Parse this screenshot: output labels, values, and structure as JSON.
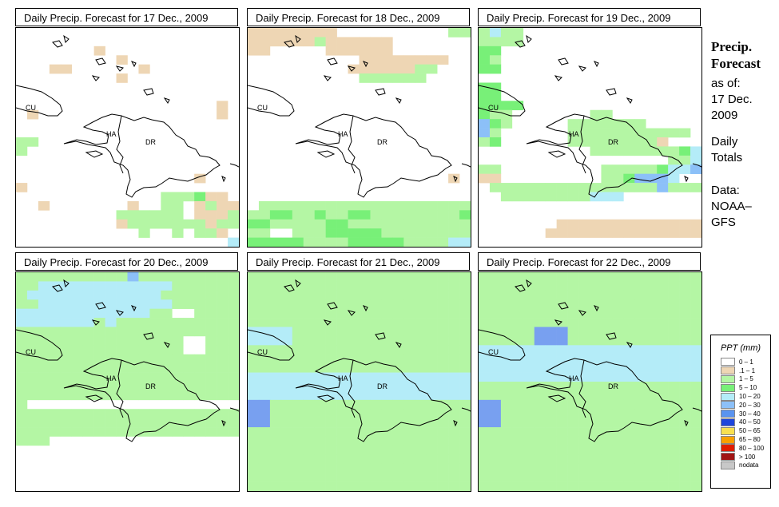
{
  "colors": {
    "c0": "#ffffff",
    "c1": "#eed6b4",
    "c2": "#b4f6a4",
    "c3": "#78f078",
    "c4": "#b4ecf8",
    "c5": "#8cc0f8",
    "c6": "#78a0f0"
  },
  "panels": [
    {
      "title": "Daily Precip. Forecast for  17 Dec., 2009",
      "grid": [
        "00000000000000000000",
        "00000000000000000000",
        "00000001000000000000",
        "00000000010000000000",
        "00011000000100000000",
        "00000000010000000000",
        "00000000000000000000",
        "00000000000000000000",
        "00000000000000000010",
        "01000000000000000010",
        "00000000000000000000",
        "00000000000000000000",
        "22000000000000000000",
        "20000000000000000000",
        "00000000000000000000",
        "00000000000000000000",
        "00000000000000001000",
        "10000000000000000000",
        "00000000000002223110",
        "00100000001002201211",
        "00000000022222201112",
        "00000000012222222122",
        "00000000000200202210",
        "00000000000000000004"
      ],
      "labels": [
        {
          "text": "CU",
          "x": 12,
          "y": 103
        },
        {
          "text": "HA",
          "x": 113,
          "y": 136
        },
        {
          "text": "DR",
          "x": 162,
          "y": 146
        }
      ]
    },
    {
      "title": "Daily Precip. Forecast for  18 Dec., 2009",
      "grid": [
        "11111111000000000022",
        "11111121111110000000",
        "11000001111110000000",
        "00000000001111111100",
        "00000000011111122000",
        "00000000002222220000",
        "00000000000000000000",
        "00000000000000000000",
        "00000000000000000000",
        "00000000000000000000",
        "00000000000000000000",
        "00000000000000000000",
        "00000000000000000000",
        "00000000000000000000",
        "00000000000000000000",
        "00000000000000000000",
        "00000000000000000010",
        "00000000000000000000",
        "00000000000000000000",
        "02222222222222222222",
        "22332232233222222223",
        "33222223322222222222",
        "22002223333322222222",
        "33333222233333222244"
      ],
      "labels": [
        {
          "text": "CU",
          "x": 12,
          "y": 103
        },
        {
          "text": "HA",
          "x": 113,
          "y": 136
        },
        {
          "text": "DR",
          "x": 162,
          "y": 146
        }
      ]
    },
    {
      "title": "Daily Precip. Forecast for  19 Dec., 2009",
      "grid": [
        "24220000000000000000",
        "22220000000000000000",
        "33000000000000000000",
        "32000000000000000000",
        "33000000000000000000",
        "00000000000000000000",
        "33000000000000000000",
        "33000000000000000000",
        "33330000000000000000",
        "32200000002200000000",
        "53200000222222200000",
        "52000000222222222220",
        "23000000222222221000",
        "00000000002222222234",
        "00000000000000000224",
        "22000000000222223445",
        "11000000000223555400",
        "02222222222222225222",
        "00222222224440000000",
        "00000000000000000000",
        "00000000000000000000",
        "00000001111111111111",
        "00000011111111111111",
        "00000000000000000000"
      ],
      "labels": [
        {
          "text": "CU",
          "x": 12,
          "y": 103
        },
        {
          "text": "HA",
          "x": 113,
          "y": 136
        },
        {
          "text": "DR",
          "x": 162,
          "y": 146
        }
      ]
    },
    {
      "title": "Daily Precip. Forecast for  20 Dec., 2009",
      "grid": [
        "22222222225222222222",
        "22444444444444222222",
        "24444444444442222222",
        "22444444444444222222",
        "44444444444422002222",
        "44444442422222222222",
        "22222222222222222222",
        "22222222222222200222",
        "22222222222222200222",
        "22222222222222222222",
        "22222222222222222222",
        "22222222222222222222",
        "22222222222222222222",
        "22222222222222222222",
        "20000000000000000000",
        "22222222222222222222",
        "22222222222222222222",
        "22222222222222222222",
        "22200000000000000000",
        "00000000000000000000",
        "00000000000000000000",
        "00000000000000000000",
        "00000000000000000000",
        "00000000000000000000"
      ],
      "labels": [
        {
          "text": "CU",
          "x": 12,
          "y": 103
        },
        {
          "text": "HA",
          "x": 113,
          "y": 136
        },
        {
          "text": "DR",
          "x": 162,
          "y": 146
        }
      ]
    },
    {
      "title": "Daily Precip. Forecast for  21 Dec., 2009",
      "grid": [
        "22222222222222222222",
        "22222222222222222222",
        "22222222222222222222",
        "22222222222222222222",
        "22222222222222222222",
        "22222222222222222222",
        "44442222222222222222",
        "44442222222222222222",
        "22222222222222222222",
        "22222222222222222222",
        "22222222222222222222",
        "44444444444444444444",
        "44444444444444444444",
        "44444444444444444444",
        "66222222222222222222",
        "66222222222222222222",
        "66222222222222222222",
        "22222222222222222222",
        "22222222222222222222",
        "22222222222222222222",
        "22222222222222222222",
        "22222222222222222222",
        "22222222222222222222",
        "22222222222222222222"
      ],
      "labels": [
        {
          "text": "CU",
          "x": 12,
          "y": 103
        },
        {
          "text": "HA",
          "x": 113,
          "y": 136
        },
        {
          "text": "DR",
          "x": 162,
          "y": 146
        }
      ]
    },
    {
      "title": "Daily Precip. Forecast for  22 Dec., 2009",
      "grid": [
        "22222222222222222222",
        "22222222222222222222",
        "22222222222222222222",
        "22222222222222222222",
        "22222222222222222222",
        "22222222222222222222",
        "22222666222222222222",
        "22222666222222222222",
        "44444444444444444444",
        "44444444444444444444",
        "44444444444444444444",
        "44444444444444444444",
        "22222222222222222222",
        "22222222222222222222",
        "66222222222222222222",
        "66222222222222222222",
        "66222222222222222222",
        "22222222222222222222",
        "22222222222222222222",
        "22222222222222222222",
        "22222222222222222222",
        "22222222222222222222",
        "22222222222222222222",
        "22222222222222222222"
      ],
      "labels": [
        {
          "text": "CU",
          "x": 12,
          "y": 103
        },
        {
          "text": "HA",
          "x": 113,
          "y": 136
        },
        {
          "text": "DR",
          "x": 162,
          "y": 146
        }
      ]
    }
  ],
  "side": {
    "title1": "Precip.",
    "title2": "Forecast",
    "asof1": "as of:",
    "asof2": "17 Dec.",
    "asof3": "2009",
    "daily1": "Daily",
    "daily2": "Totals",
    "data1": "Data:",
    "data2": "NOAA–",
    "data3": "GFS"
  },
  "legend": {
    "title": "PPT (mm)",
    "items": [
      {
        "label": "0 – 1",
        "color": "#ffffff"
      },
      {
        "label": ".1 – 1",
        "color": "#eed6b4"
      },
      {
        "label": "1 – 5",
        "color": "#b4f6a4"
      },
      {
        "label": "5 – 10",
        "color": "#78f078"
      },
      {
        "label": "10 – 20",
        "color": "#b4ecf8"
      },
      {
        "label": "20 – 30",
        "color": "#8cc0f8"
      },
      {
        "label": "30 – 40",
        "color": "#5a94f0"
      },
      {
        "label": "40 – 50",
        "color": "#1e46dc"
      },
      {
        "label": "50 – 65",
        "color": "#f8e050"
      },
      {
        "label": "65 – 80",
        "color": "#f8a000"
      },
      {
        "label": "80 – 100",
        "color": "#e01e00"
      },
      {
        "label": "> 100",
        "color": "#a01414"
      },
      {
        "label": "nodata",
        "color": "#c8c8c8"
      }
    ]
  }
}
